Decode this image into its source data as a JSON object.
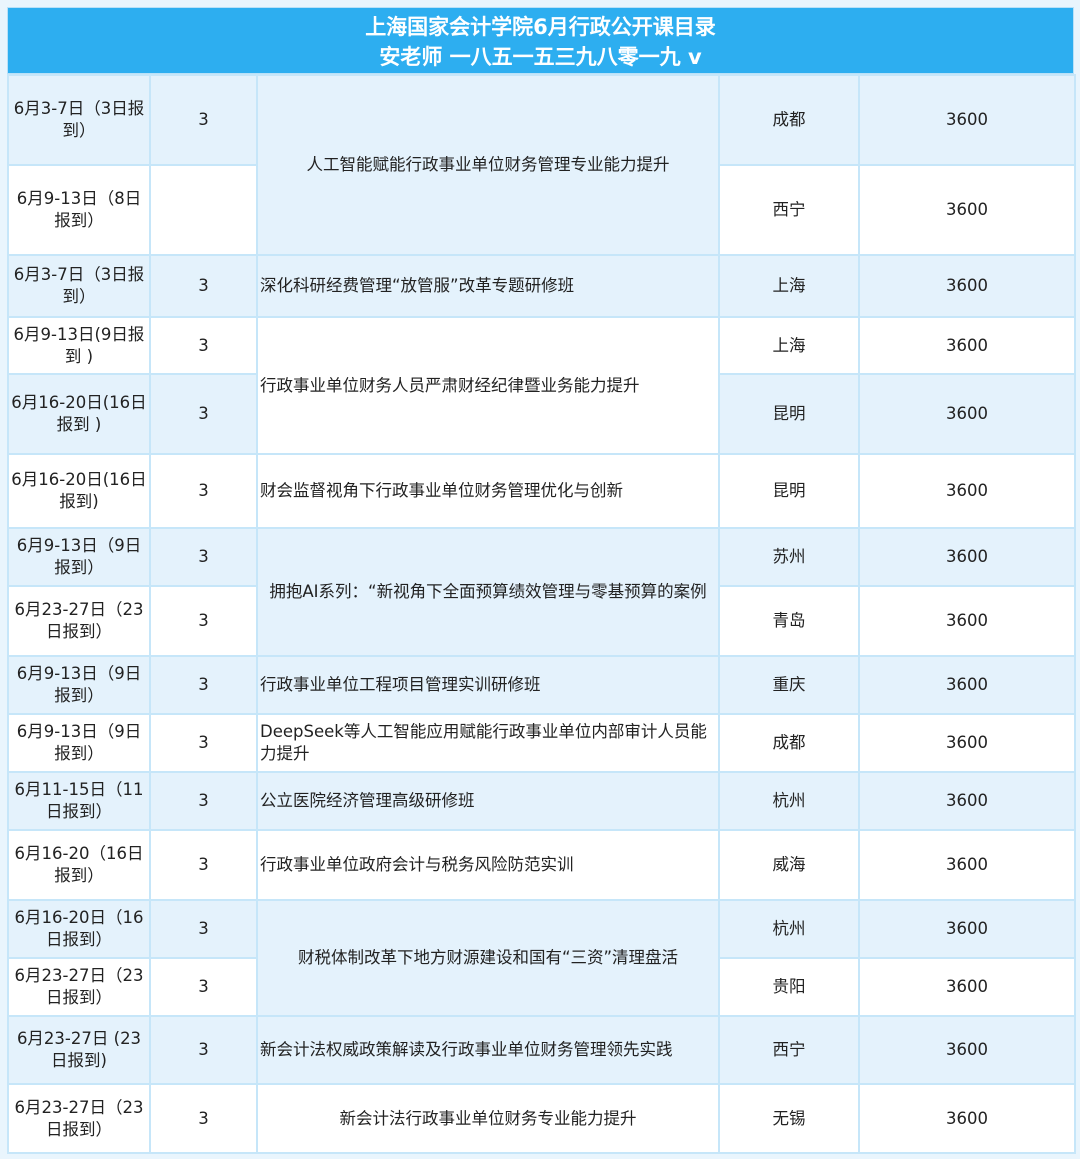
{
  "header": {
    "title": "上海国家会计学院6月行政公开课目录",
    "contact": "安老师  一八五一五三九八零一九 v"
  },
  "colors": {
    "header": "#2daef0",
    "row_alt": "#e4f2fc",
    "border": "#c6e6f9"
  },
  "rows": [
    {
      "date": "6月3-7日（3日报到）",
      "days": "3",
      "course": "人工智能赋能行政事业单位财务管理专业能力提升",
      "course_span": 2,
      "city": "成都",
      "fee": "3600"
    },
    {
      "date": "6月9-13日（8日报到）",
      "days": "",
      "city": "西宁",
      "fee": "3600"
    },
    {
      "date": "6月3-7日（3日报到）",
      "days": "3",
      "course": "深化科研经费管理“放管服”改革专题研修班",
      "course_span": 1,
      "city": "上海",
      "fee": "3600"
    },
    {
      "date": "6月9-13日(9日报到 )",
      "days": "3",
      "course": "行政事业单位财务人员严肃财经纪律暨业务能力提升",
      "course_span": 2,
      "city": "上海",
      "fee": "3600"
    },
    {
      "date": "6月16-20日(16日报到 )",
      "days": "3",
      "city": "昆明",
      "fee": "3600"
    },
    {
      "date": "6月16-20日(16日报到)",
      "days": "3",
      "course": "财会监督视角下行政事业单位财务管理优化与创新",
      "course_span": 1,
      "city": "昆明",
      "fee": "3600"
    },
    {
      "date": "6月9-13日（9日报到）",
      "days": "3",
      "course": "拥抱AI系列：“新视角下全面预算绩效管理与零基预算的案例",
      "course_span": 2,
      "city": "苏州",
      "fee": "3600"
    },
    {
      "date": "6月23-27日（23日报到）",
      "days": "3",
      "city": "青岛",
      "fee": "3600"
    },
    {
      "date": "6月9-13日（9日报到）",
      "days": "3",
      "course": "行政事业单位工程项目管理实训研修班",
      "course_span": 1,
      "city": "重庆",
      "fee": "3600"
    },
    {
      "date": "6月9-13日（9日报到）",
      "days": "3",
      "course": "DeepSeek等人工智能应用赋能行政事业单位内部审计人员能力提升",
      "course_span": 1,
      "city": "成都",
      "fee": "3600"
    },
    {
      "date": "6月11-15日（11日报到）",
      "days": "3",
      "course": "公立医院经济管理高级研修班",
      "course_span": 1,
      "city": "杭州",
      "fee": "3600"
    },
    {
      "date": "6月16-20（16日报到）",
      "days": "3",
      "course": "行政事业单位政府会计与税务风险防范实训",
      "course_span": 1,
      "city": "威海",
      "fee": "3600"
    },
    {
      "date": "6月16-20日（16日报到）",
      "days": "3",
      "course": "财税体制改革下地方财源建设和国有“三资”清理盘活",
      "course_span": 2,
      "city": "杭州",
      "fee": "3600"
    },
    {
      "date": "6月23-27日（23日报到）",
      "days": "3",
      "city": "贵阳",
      "fee": "3600"
    },
    {
      "date": "6月23-27日 (23日报到)",
      "days": "3",
      "course": "新会计法权威政策解读及行政事业单位财务管理领先实践",
      "course_span": 1,
      "city": "西宁",
      "fee": "3600"
    },
    {
      "date": "6月23-27日（23日报到）",
      "days": "3",
      "course": "新会计法行政事业单位财务专业能力提升",
      "course_span": 1,
      "city": "无锡",
      "fee": "3600"
    }
  ]
}
